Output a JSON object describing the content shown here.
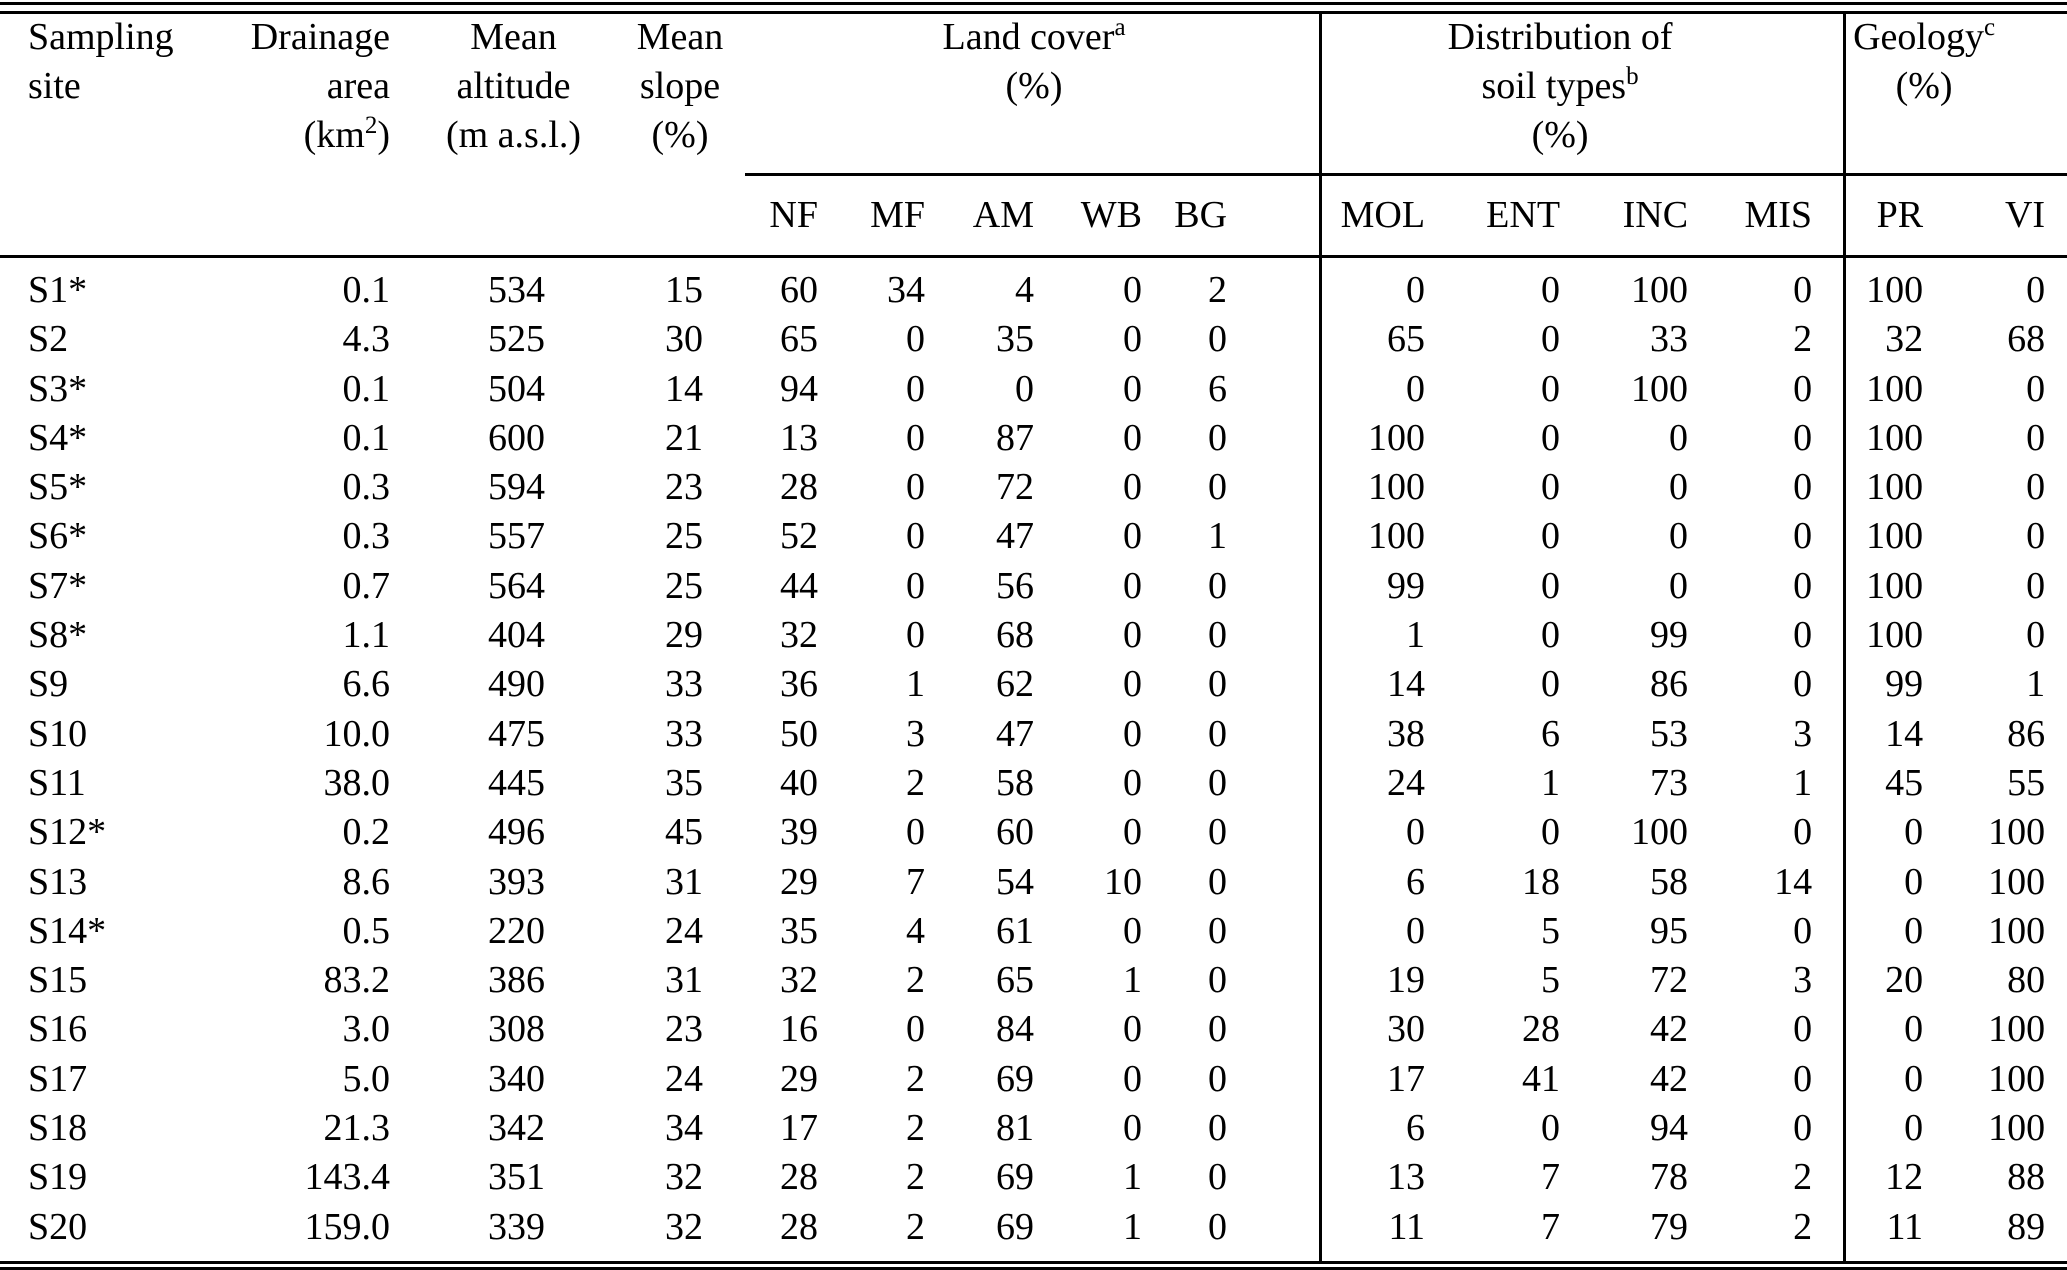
{
  "table": {
    "header": {
      "site": {
        "line1": "Sampling",
        "line2": "site"
      },
      "drainage": {
        "line1": "Drainage",
        "line2": "area",
        "unit_pre": "(km",
        "unit_sup": "2",
        "unit_post": ")"
      },
      "altitude": {
        "line1": "Mean",
        "line2": "altitude",
        "unit": "(m a.s.l.)"
      },
      "slope": {
        "line1": "Mean",
        "line2": "slope",
        "unit": "(%)"
      },
      "land_cover": {
        "title": "Land cover",
        "sup": "a",
        "unit": "(%)"
      },
      "soil_types": {
        "line1": "Distribution of",
        "line2": "soil types",
        "sup": "b",
        "unit": "(%)"
      },
      "geology": {
        "title": "Geology",
        "sup": "c",
        "unit": "(%)"
      }
    },
    "subheaders": [
      "NF",
      "MF",
      "AM",
      "WB",
      "BG",
      "MOL",
      "ENT",
      "INC",
      "MIS",
      "PR",
      "VI"
    ],
    "rows": [
      [
        "S1*",
        "0.1",
        "534",
        "15",
        "60",
        "34",
        "4",
        "0",
        "2",
        "0",
        "0",
        "100",
        "0",
        "100",
        "0"
      ],
      [
        "S2",
        "4.3",
        "525",
        "30",
        "65",
        "0",
        "35",
        "0",
        "0",
        "65",
        "0",
        "33",
        "2",
        "32",
        "68"
      ],
      [
        "S3*",
        "0.1",
        "504",
        "14",
        "94",
        "0",
        "0",
        "0",
        "6",
        "0",
        "0",
        "100",
        "0",
        "100",
        "0"
      ],
      [
        "S4*",
        "0.1",
        "600",
        "21",
        "13",
        "0",
        "87",
        "0",
        "0",
        "100",
        "0",
        "0",
        "0",
        "100",
        "0"
      ],
      [
        "S5*",
        "0.3",
        "594",
        "23",
        "28",
        "0",
        "72",
        "0",
        "0",
        "100",
        "0",
        "0",
        "0",
        "100",
        "0"
      ],
      [
        "S6*",
        "0.3",
        "557",
        "25",
        "52",
        "0",
        "47",
        "0",
        "1",
        "100",
        "0",
        "0",
        "0",
        "100",
        "0"
      ],
      [
        "S7*",
        "0.7",
        "564",
        "25",
        "44",
        "0",
        "56",
        "0",
        "0",
        "99",
        "0",
        "0",
        "0",
        "100",
        "0"
      ],
      [
        "S8*",
        "1.1",
        "404",
        "29",
        "32",
        "0",
        "68",
        "0",
        "0",
        "1",
        "0",
        "99",
        "0",
        "100",
        "0"
      ],
      [
        "S9",
        "6.6",
        "490",
        "33",
        "36",
        "1",
        "62",
        "0",
        "0",
        "14",
        "0",
        "86",
        "0",
        "99",
        "1"
      ],
      [
        "S10",
        "10.0",
        "475",
        "33",
        "50",
        "3",
        "47",
        "0",
        "0",
        "38",
        "6",
        "53",
        "3",
        "14",
        "86"
      ],
      [
        "S11",
        "38.0",
        "445",
        "35",
        "40",
        "2",
        "58",
        "0",
        "0",
        "24",
        "1",
        "73",
        "1",
        "45",
        "55"
      ],
      [
        "S12*",
        "0.2",
        "496",
        "45",
        "39",
        "0",
        "60",
        "0",
        "0",
        "0",
        "0",
        "100",
        "0",
        "0",
        "100"
      ],
      [
        "S13",
        "8.6",
        "393",
        "31",
        "29",
        "7",
        "54",
        "10",
        "0",
        "6",
        "18",
        "58",
        "14",
        "0",
        "100"
      ],
      [
        "S14*",
        "0.5",
        "220",
        "24",
        "35",
        "4",
        "61",
        "0",
        "0",
        "0",
        "5",
        "95",
        "0",
        "0",
        "100"
      ],
      [
        "S15",
        "83.2",
        "386",
        "31",
        "32",
        "2",
        "65",
        "1",
        "0",
        "19",
        "5",
        "72",
        "3",
        "20",
        "80"
      ],
      [
        "S16",
        "3.0",
        "308",
        "23",
        "16",
        "0",
        "84",
        "0",
        "0",
        "30",
        "28",
        "42",
        "0",
        "0",
        "100"
      ],
      [
        "S17",
        "5.0",
        "340",
        "24",
        "29",
        "2",
        "69",
        "0",
        "0",
        "17",
        "41",
        "42",
        "0",
        "0",
        "100"
      ],
      [
        "S18",
        "21.3",
        "342",
        "34",
        "17",
        "2",
        "81",
        "0",
        "0",
        "6",
        "0",
        "94",
        "0",
        "0",
        "100"
      ],
      [
        "S19",
        "143.4",
        "351",
        "32",
        "28",
        "2",
        "69",
        "1",
        "0",
        "13",
        "7",
        "78",
        "2",
        "12",
        "88"
      ],
      [
        "S20",
        "159.0",
        "339",
        "32",
        "28",
        "2",
        "69",
        "1",
        "0",
        "11",
        "7",
        "79",
        "2",
        "11",
        "89"
      ]
    ]
  }
}
